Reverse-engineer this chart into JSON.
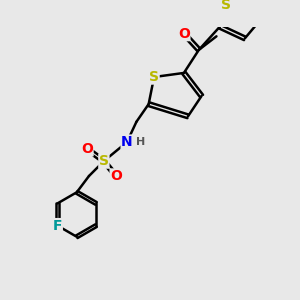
{
  "bg_color": "#e8e8e8",
  "bond_color": "#000000",
  "bond_width": 1.8,
  "atom_colors": {
    "S": "#b8b800",
    "O": "#ff0000",
    "N": "#0000ee",
    "F": "#009999",
    "H": "#555555",
    "C": "#000000"
  },
  "font_size": 9,
  "fig_size": [
    3.0,
    3.0
  ],
  "dpi": 100
}
